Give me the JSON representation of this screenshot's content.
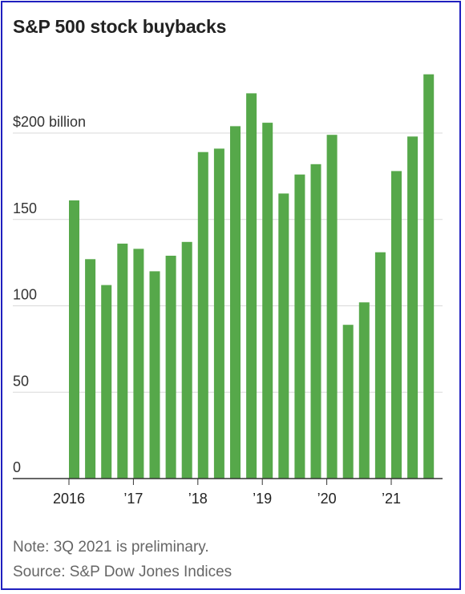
{
  "title": "S&P 500 stock buybacks",
  "note": "Note: 3Q 2021 is preliminary.",
  "source": "Source: S&P Dow Jones Indices",
  "chart_data": {
    "type": "bar",
    "title": "S&P 500 stock buybacks",
    "ylabel": "",
    "xlabel": "",
    "ylim": [
      0,
      240
    ],
    "yticks": [
      0,
      50,
      100,
      150,
      200
    ],
    "ytick_labels": [
      "0",
      "50",
      "100",
      "150",
      "$200 billion"
    ],
    "grid": true,
    "bar_color": "#56a84a",
    "categories": [
      "1Q 2016",
      "2Q 2016",
      "3Q 2016",
      "4Q 2016",
      "1Q 2017",
      "2Q 2017",
      "3Q 2017",
      "4Q 2017",
      "1Q 2018",
      "2Q 2018",
      "3Q 2018",
      "4Q 2018",
      "1Q 2019",
      "2Q 2019",
      "3Q 2019",
      "4Q 2019",
      "1Q 2020",
      "2Q 2020",
      "3Q 2020",
      "4Q 2020",
      "1Q 2021",
      "2Q 2021",
      "3Q 2021"
    ],
    "values": [
      161,
      127,
      112,
      136,
      133,
      120,
      129,
      137,
      189,
      191,
      204,
      223,
      206,
      165,
      176,
      182,
      199,
      89,
      102,
      131,
      178,
      198,
      234
    ],
    "x_tick_labels": [
      {
        "index": 0,
        "label": "2016"
      },
      {
        "index": 4,
        "label": "’17"
      },
      {
        "index": 8,
        "label": "’18"
      },
      {
        "index": 12,
        "label": "’19"
      },
      {
        "index": 16,
        "label": "’20"
      },
      {
        "index": 20,
        "label": "’21"
      }
    ]
  }
}
